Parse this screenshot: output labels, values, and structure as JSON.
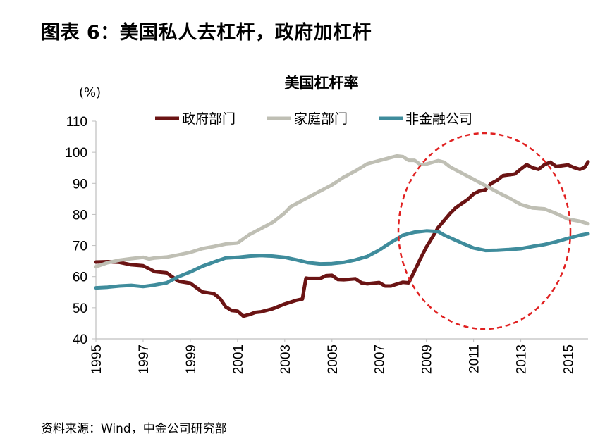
{
  "figure": {
    "title": "图表 6：美国私人去杠杆，政府加杠杆",
    "source": "资料来源：Wind，中金公司研究部"
  },
  "colors": {
    "government": "#6b1414",
    "household": "#bfbfb4",
    "nonfinancial": "#3f8c9c",
    "highlight": "#e02020",
    "axis": "#bfbfbf"
  },
  "chart_data": {
    "type": "line",
    "title": "美国杠杆率",
    "ylabel": "(%)",
    "xlim": [
      1995,
      2015.85
    ],
    "ylim": [
      40,
      110
    ],
    "yticks": [
      40,
      50,
      60,
      70,
      80,
      90,
      100,
      110
    ],
    "xticks": [
      "1995",
      "1997",
      "1999",
      "2001",
      "2003",
      "2005",
      "2007",
      "2009",
      "2011",
      "2013",
      "2015"
    ],
    "legend_position": "top-center",
    "annotation": "red dashed circle highlighting 2008–2015",
    "series": [
      {
        "name": "政府部门",
        "color_key": "government",
        "points": [
          [
            1995,
            64.7
          ],
          [
            1995.5,
            64.8
          ],
          [
            1996,
            64.6
          ],
          [
            1996.5,
            63.8
          ],
          [
            1997,
            63.5
          ],
          [
            1997.5,
            61.6
          ],
          [
            1998,
            61.2
          ],
          [
            1998.5,
            58.5
          ],
          [
            1999,
            57.9
          ],
          [
            1999.5,
            55.1
          ],
          [
            2000,
            54.5
          ],
          [
            2000.25,
            53.0
          ],
          [
            2000.5,
            50.3
          ],
          [
            2000.75,
            49.1
          ],
          [
            2001,
            48.9
          ],
          [
            2001.25,
            47.3
          ],
          [
            2001.5,
            47.8
          ],
          [
            2001.75,
            48.5
          ],
          [
            2002,
            48.7
          ],
          [
            2002.5,
            49.7
          ],
          [
            2003,
            51.2
          ],
          [
            2003.5,
            52.4
          ],
          [
            2003.75,
            52.8
          ],
          [
            2003.9,
            59.5
          ],
          [
            2004,
            59.4
          ],
          [
            2004.5,
            59.4
          ],
          [
            2004.75,
            60.3
          ],
          [
            2005,
            60.4
          ],
          [
            2005.25,
            59.1
          ],
          [
            2005.5,
            59.0
          ],
          [
            2006,
            59.3
          ],
          [
            2006.25,
            58.0
          ],
          [
            2006.5,
            57.7
          ],
          [
            2007,
            58.1
          ],
          [
            2007.25,
            57.0
          ],
          [
            2007.5,
            57.0
          ],
          [
            2008,
            58.2
          ],
          [
            2008.25,
            58.0
          ],
          [
            2008.5,
            61.8
          ],
          [
            2008.75,
            65.8
          ],
          [
            2009,
            69.5
          ],
          [
            2009.25,
            72.6
          ],
          [
            2009.5,
            75.8
          ],
          [
            2010,
            80.3
          ],
          [
            2010.25,
            82.2
          ],
          [
            2010.5,
            83.5
          ],
          [
            2010.75,
            84.8
          ],
          [
            2011,
            86.6
          ],
          [
            2011.25,
            87.5
          ],
          [
            2011.5,
            87.9
          ],
          [
            2011.75,
            90.0
          ],
          [
            2012,
            91.0
          ],
          [
            2012.25,
            92.5
          ],
          [
            2012.75,
            93.0
          ],
          [
            2013,
            94.6
          ],
          [
            2013.25,
            96.0
          ],
          [
            2013.5,
            95.0
          ],
          [
            2013.75,
            94.5
          ],
          [
            2014,
            96.0
          ],
          [
            2014.25,
            96.8
          ],
          [
            2014.5,
            95.4
          ],
          [
            2015,
            95.9
          ],
          [
            2015.25,
            95.1
          ],
          [
            2015.5,
            94.5
          ],
          [
            2015.7,
            95.1
          ],
          [
            2015.85,
            96.9
          ]
        ]
      },
      {
        "name": "家庭部门",
        "color_key": "household",
        "points": [
          [
            1995,
            63.2
          ],
          [
            1995.5,
            64.5
          ],
          [
            1996,
            65.3
          ],
          [
            1996.5,
            65.8
          ],
          [
            1997,
            66.2
          ],
          [
            1997.25,
            65.7
          ],
          [
            1997.5,
            66.0
          ],
          [
            1998,
            66.3
          ],
          [
            1998.5,
            67.0
          ],
          [
            1999,
            67.8
          ],
          [
            1999.5,
            69.0
          ],
          [
            2000,
            69.7
          ],
          [
            2000.5,
            70.5
          ],
          [
            2001,
            70.8
          ],
          [
            2001.5,
            73.5
          ],
          [
            2002,
            75.5
          ],
          [
            2002.5,
            77.5
          ],
          [
            2003,
            80.5
          ],
          [
            2003.25,
            82.5
          ],
          [
            2003.5,
            83.5
          ],
          [
            2004,
            85.5
          ],
          [
            2004.5,
            87.5
          ],
          [
            2005,
            89.5
          ],
          [
            2005.5,
            92.0
          ],
          [
            2006,
            94.0
          ],
          [
            2006.5,
            96.3
          ],
          [
            2007,
            97.3
          ],
          [
            2007.5,
            98.3
          ],
          [
            2007.75,
            98.8
          ],
          [
            2008,
            98.6
          ],
          [
            2008.25,
            97.4
          ],
          [
            2008.5,
            97.4
          ],
          [
            2008.75,
            96.0
          ],
          [
            2009,
            96.2
          ],
          [
            2009.5,
            97.3
          ],
          [
            2009.75,
            96.8
          ],
          [
            2010,
            95.3
          ],
          [
            2010.5,
            93.3
          ],
          [
            2011,
            91.3
          ],
          [
            2011.5,
            89.3
          ],
          [
            2012,
            87.2
          ],
          [
            2012.5,
            85.3
          ],
          [
            2013,
            83.2
          ],
          [
            2013.5,
            82.1
          ],
          [
            2014,
            81.8
          ],
          [
            2014.5,
            80.3
          ],
          [
            2015,
            78.5
          ],
          [
            2015.5,
            77.8
          ],
          [
            2015.85,
            77.0
          ]
        ]
      },
      {
        "name": "非金融公司",
        "color_key": "nonfinancial",
        "points": [
          [
            1995,
            56.4
          ],
          [
            1995.5,
            56.6
          ],
          [
            1996,
            57.0
          ],
          [
            1996.5,
            57.2
          ],
          [
            1997,
            56.8
          ],
          [
            1997.5,
            57.3
          ],
          [
            1998,
            58.0
          ],
          [
            1998.5,
            60.0
          ],
          [
            1999,
            61.5
          ],
          [
            1999.5,
            63.3
          ],
          [
            2000,
            64.7
          ],
          [
            2000.5,
            66.0
          ],
          [
            2001,
            66.2
          ],
          [
            2001.5,
            66.6
          ],
          [
            2002,
            66.8
          ],
          [
            2002.5,
            66.6
          ],
          [
            2003,
            66.2
          ],
          [
            2003.5,
            65.4
          ],
          [
            2004,
            64.5
          ],
          [
            2004.5,
            64.1
          ],
          [
            2005,
            64.2
          ],
          [
            2005.5,
            64.6
          ],
          [
            2006,
            65.4
          ],
          [
            2006.5,
            66.5
          ],
          [
            2007,
            68.5
          ],
          [
            2007.5,
            71.0
          ],
          [
            2008,
            73.3
          ],
          [
            2008.5,
            74.3
          ],
          [
            2009,
            74.7
          ],
          [
            2009.5,
            74.5
          ],
          [
            2009.75,
            73.4
          ],
          [
            2010,
            72.5
          ],
          [
            2010.5,
            70.8
          ],
          [
            2011,
            69.2
          ],
          [
            2011.5,
            68.4
          ],
          [
            2012,
            68.5
          ],
          [
            2012.5,
            68.7
          ],
          [
            2013,
            69.0
          ],
          [
            2013.5,
            69.7
          ],
          [
            2014,
            70.3
          ],
          [
            2014.5,
            71.2
          ],
          [
            2015,
            72.3
          ],
          [
            2015.5,
            73.3
          ],
          [
            2015.85,
            73.8
          ]
        ]
      }
    ]
  }
}
